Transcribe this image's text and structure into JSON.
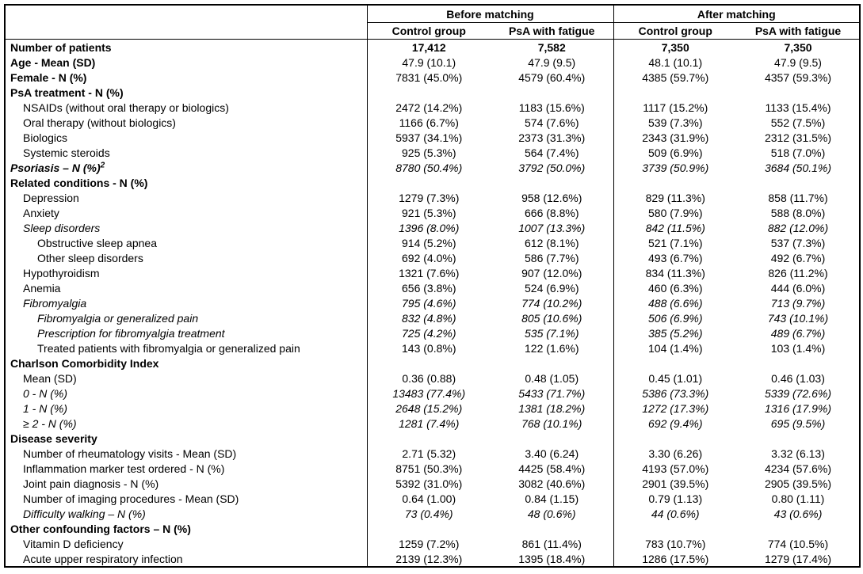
{
  "table": {
    "header": {
      "group_before": "Before matching",
      "group_after": "After matching",
      "col_labels": [
        "Control group",
        "PsA with fatigue",
        "Control group",
        "PsA with fatigue"
      ]
    },
    "rows": [
      {
        "label": "Number of patients",
        "indent": 0,
        "label_style": "bold",
        "values": [
          "17,412",
          "7,582",
          "7,350",
          "7,350"
        ],
        "values_style": "bold"
      },
      {
        "label": "Age - Mean (SD)",
        "indent": 0,
        "label_style": "bold",
        "values": [
          "47.9 (10.1)",
          "47.9 (9.5)",
          "48.1 (10.1)",
          "47.9 (9.5)"
        ],
        "values_style": ""
      },
      {
        "label": "Female - N (%)",
        "indent": 0,
        "label_style": "bold",
        "values": [
          "7831 (45.0%)",
          "4579 (60.4%)",
          "4385 (59.7%)",
          "4357 (59.3%)"
        ],
        "values_style": ""
      },
      {
        "label": "PsA treatment - N (%)",
        "indent": 0,
        "label_style": "bold",
        "values": [
          "",
          "",
          "",
          ""
        ],
        "values_style": ""
      },
      {
        "label": "NSAIDs (without oral therapy or biologics)",
        "indent": 1,
        "label_style": "",
        "values": [
          "2472 (14.2%)",
          "1183 (15.6%)",
          "1117 (15.2%)",
          "1133 (15.4%)"
        ],
        "values_style": ""
      },
      {
        "label": "Oral therapy (without biologics)",
        "indent": 1,
        "label_style": "",
        "values": [
          "1166 (6.7%)",
          "574 (7.6%)",
          "539 (7.3%)",
          "552 (7.5%)"
        ],
        "values_style": ""
      },
      {
        "label": "Biologics",
        "indent": 1,
        "label_style": "",
        "values": [
          "5937 (34.1%)",
          "2373 (31.3%)",
          "2343 (31.9%)",
          "2312 (31.5%)"
        ],
        "values_style": ""
      },
      {
        "label": "Systemic steroids",
        "indent": 1,
        "label_style": "",
        "values": [
          "925 (5.3%)",
          "564 (7.4%)",
          "509 (6.9%)",
          "518 (7.0%)"
        ],
        "values_style": ""
      },
      {
        "label": "Psoriasis – N (%)",
        "label_sup": "2",
        "indent": 0,
        "label_style": "bold italic",
        "values": [
          "8780 (50.4%)",
          "3792 (50.0%)",
          "3739 (50.9%)",
          "3684 (50.1%)"
        ],
        "values_style": "italic"
      },
      {
        "label": "Related conditions - N (%)",
        "indent": 0,
        "label_style": "bold",
        "values": [
          "",
          "",
          "",
          ""
        ],
        "values_style": ""
      },
      {
        "label": "Depression",
        "indent": 1,
        "label_style": "",
        "values": [
          "1279 (7.3%)",
          "958 (12.6%)",
          "829 (11.3%)",
          "858 (11.7%)"
        ],
        "values_style": ""
      },
      {
        "label": "Anxiety",
        "indent": 1,
        "label_style": "",
        "values": [
          "921 (5.3%)",
          "666 (8.8%)",
          "580 (7.9%)",
          "588 (8.0%)"
        ],
        "values_style": ""
      },
      {
        "label": "Sleep disorders",
        "indent": 1,
        "label_style": "italic",
        "values": [
          "1396 (8.0%)",
          "1007 (13.3%)",
          "842 (11.5%)",
          "882 (12.0%)"
        ],
        "values_style": "italic"
      },
      {
        "label": "Obstructive sleep apnea",
        "indent": 2,
        "label_style": "",
        "values": [
          "914 (5.2%)",
          "612 (8.1%)",
          "521 (7.1%)",
          "537 (7.3%)"
        ],
        "values_style": ""
      },
      {
        "label": "Other sleep disorders",
        "indent": 2,
        "label_style": "",
        "values": [
          "692 (4.0%)",
          "586 (7.7%)",
          "493 (6.7%)",
          "492 (6.7%)"
        ],
        "values_style": ""
      },
      {
        "label": "Hypothyroidism",
        "indent": 1,
        "label_style": "",
        "values": [
          "1321 (7.6%)",
          "907 (12.0%)",
          "834 (11.3%)",
          "826 (11.2%)"
        ],
        "values_style": ""
      },
      {
        "label": "Anemia",
        "indent": 1,
        "label_style": "",
        "values": [
          "656 (3.8%)",
          "524 (6.9%)",
          "460 (6.3%)",
          "444 (6.0%)"
        ],
        "values_style": ""
      },
      {
        "label": "Fibromyalgia",
        "indent": 1,
        "label_style": "italic",
        "values": [
          "795 (4.6%)",
          "774 (10.2%)",
          "488 (6.6%)",
          "713 (9.7%)"
        ],
        "values_style": "italic"
      },
      {
        "label": "Fibromyalgia or generalized pain",
        "indent": 2,
        "label_style": "italic",
        "values": [
          "832 (4.8%)",
          "805 (10.6%)",
          "506 (6.9%)",
          "743 (10.1%)"
        ],
        "values_style": "italic"
      },
      {
        "label": "Prescription for fibromyalgia treatment",
        "indent": 2,
        "label_style": "italic",
        "values": [
          "725 (4.2%)",
          "535 (7.1%)",
          "385 (5.2%)",
          "489 (6.7%)"
        ],
        "values_style": "italic"
      },
      {
        "label": "Treated patients with fibromyalgia or generalized pain",
        "indent": 2,
        "label_style": "",
        "values": [
          "143 (0.8%)",
          "122 (1.6%)",
          "104 (1.4%)",
          "103 (1.4%)"
        ],
        "values_style": ""
      },
      {
        "label": "Charlson Comorbidity Index",
        "indent": 0,
        "label_style": "bold",
        "values": [
          "",
          "",
          "",
          ""
        ],
        "values_style": ""
      },
      {
        "label": "Mean (SD)",
        "indent": 1,
        "label_style": "",
        "values": [
          "0.36 (0.88)",
          "0.48 (1.05)",
          "0.45 (1.01)",
          "0.46 (1.03)"
        ],
        "values_style": ""
      },
      {
        "label": "0 - N (%)",
        "indent": 1,
        "label_style": "italic",
        "values": [
          "13483 (77.4%)",
          "5433 (71.7%)",
          "5386 (73.3%)",
          "5339 (72.6%)"
        ],
        "values_style": "italic"
      },
      {
        "label": "1 - N (%)",
        "indent": 1,
        "label_style": "italic",
        "values": [
          "2648 (15.2%)",
          "1381 (18.2%)",
          "1272 (17.3%)",
          "1316 (17.9%)"
        ],
        "values_style": "italic"
      },
      {
        "label": "≥ 2 - N (%)",
        "indent": 1,
        "label_style": "italic",
        "values": [
          "1281 (7.4%)",
          "768 (10.1%)",
          "692 (9.4%)",
          "695 (9.5%)"
        ],
        "values_style": "italic"
      },
      {
        "label": "Disease severity",
        "indent": 0,
        "label_style": "bold",
        "values": [
          "",
          "",
          "",
          ""
        ],
        "values_style": ""
      },
      {
        "label": "Number of rheumatology visits - Mean (SD)",
        "indent": 1,
        "label_style": "",
        "values": [
          "2.71 (5.32)",
          "3.40 (6.24)",
          "3.30 (6.26)",
          "3.32 (6.13)"
        ],
        "values_style": ""
      },
      {
        "label": "Inflammation marker test ordered - N (%)",
        "indent": 1,
        "label_style": "",
        "values": [
          "8751 (50.3%)",
          "4425 (58.4%)",
          "4193 (57.0%)",
          "4234 (57.6%)"
        ],
        "values_style": ""
      },
      {
        "label": "Joint pain diagnosis - N (%)",
        "indent": 1,
        "label_style": "",
        "values": [
          "5392 (31.0%)",
          "3082 (40.6%)",
          "2901 (39.5%)",
          "2905 (39.5%)"
        ],
        "values_style": ""
      },
      {
        "label": "Number of imaging procedures - Mean (SD)",
        "indent": 1,
        "label_style": "",
        "values": [
          "0.64 (1.00)",
          "0.84 (1.15)",
          "0.79 (1.13)",
          "0.80 (1.11)"
        ],
        "values_style": ""
      },
      {
        "label": "Difficulty walking – N (%)",
        "indent": 1,
        "label_style": "italic",
        "values": [
          "73 (0.4%)",
          "48 (0.6%)",
          "44 (0.6%)",
          "43 (0.6%)"
        ],
        "values_style": "italic"
      },
      {
        "label": "Other confounding factors – N (%)",
        "indent": 0,
        "label_style": "bold",
        "values": [
          "",
          "",
          "",
          ""
        ],
        "values_style": ""
      },
      {
        "label": "Vitamin D deficiency",
        "indent": 1,
        "label_style": "",
        "values": [
          "1259 (7.2%)",
          "861 (11.4%)",
          "783 (10.7%)",
          "774 (10.5%)"
        ],
        "values_style": ""
      },
      {
        "label": "Acute upper respiratory infection",
        "indent": 1,
        "label_style": "",
        "values": [
          "2139 (12.3%)",
          "1395 (18.4%)",
          "1286 (17.5%)",
          "1279 (17.4%)"
        ],
        "values_style": ""
      }
    ]
  }
}
